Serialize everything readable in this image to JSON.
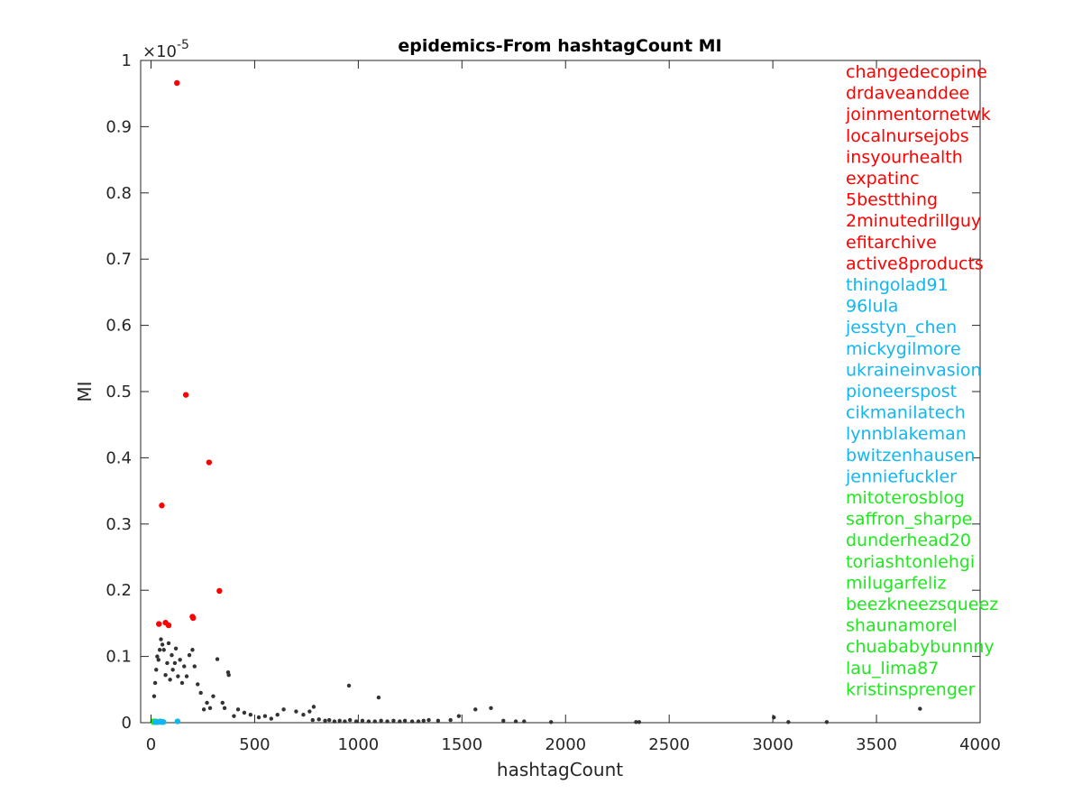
{
  "chart_data": {
    "type": "scatter",
    "title": "epidemics-From hashtagCount MI",
    "xlabel": "hashtagCount",
    "ylabel": "MI",
    "xlim": [
      -50,
      4000
    ],
    "ylim": [
      0,
      1
    ],
    "y_scale_exponent": "-5",
    "y_scale_prefix": "×10",
    "x_ticks": [
      0,
      500,
      1000,
      1500,
      2000,
      2500,
      3000,
      3500,
      4000
    ],
    "x_tick_labels": [
      "0",
      "500",
      "1000",
      "1500",
      "2000",
      "2500",
      "3000",
      "3500",
      "4000"
    ],
    "y_ticks": [
      0,
      0.1,
      0.2,
      0.3,
      0.4,
      0.5,
      0.6,
      0.7,
      0.8,
      0.9,
      1
    ],
    "y_tick_labels": [
      "0",
      "0.1",
      "0.2",
      "0.3",
      "0.4",
      "0.5",
      "0.6",
      "0.7",
      "0.8",
      "0.9",
      "1"
    ],
    "grid": false,
    "legend_placement": "right",
    "colors": {
      "red": "#ff0000",
      "cyan": "#12b6f0",
      "green": "#1fe81f",
      "gray": "#333333",
      "axis": "#262626"
    },
    "series": [
      {
        "color": "#ff0000",
        "labels": [
          "changedecopine",
          "drdaveanddee",
          "joinmentornetwk",
          "localnursejobs",
          "insyourhealth",
          "expatinc",
          "5bestthing",
          "2minutedrillguy",
          "efitarchive",
          "active8products"
        ],
        "points": [
          [
            125,
            0.966
          ],
          [
            168,
            0.495
          ],
          [
            280,
            0.393
          ],
          [
            52,
            0.328
          ],
          [
            330,
            0.199
          ],
          [
            200,
            0.16
          ],
          [
            203,
            0.158
          ],
          [
            70,
            0.151
          ],
          [
            38,
            0.149
          ],
          [
            85,
            0.147
          ]
        ]
      },
      {
        "color": "#12b6f0",
        "labels": [
          "thingolad91",
          "96lula",
          "jesstyn_chen",
          "mickygilmore",
          "ukraineinvasion",
          "pioneerspost",
          "cikmanilatech",
          "lynnblakeman",
          "bwitzenhausen",
          "jenniefuckler"
        ],
        "points": [
          [
            128,
            0.002
          ],
          [
            50,
            0.001
          ],
          [
            20,
            0.001
          ],
          [
            30,
            0.001
          ],
          [
            40,
            0.0015
          ],
          [
            60,
            0.001
          ],
          [
            45,
            0.002
          ],
          [
            25,
            0.001
          ],
          [
            55,
            0.0012
          ],
          [
            35,
            0.001
          ]
        ]
      },
      {
        "color": "#1fe81f",
        "labels": [
          "mitoterosblog",
          "saffron_sharpe",
          "dunderhead20",
          "toriashtonlehgi",
          "milugarfeliz",
          "beezkneezsqueez",
          "shaunamorel",
          "chuababybunnny",
          "lau_lima87",
          "kristinsprenger"
        ],
        "points": [
          [
            10,
            0.002
          ],
          [
            15,
            0.001
          ],
          [
            20,
            0.0015
          ],
          [
            12,
            0.001
          ],
          [
            18,
            0.002
          ],
          [
            22,
            0.001
          ],
          [
            14,
            0.0012
          ],
          [
            16,
            0.001
          ],
          [
            24,
            0.002
          ],
          [
            11,
            0.001
          ]
        ]
      },
      {
        "color": "#333333",
        "points": [
          [
            955,
            0.056
          ],
          [
            1098,
            0.038
          ],
          [
            1565,
            0.02
          ],
          [
            1640,
            0.022
          ],
          [
            3710,
            0.021
          ],
          [
            3005,
            0.008
          ],
          [
            3075,
            0.001
          ],
          [
            3260,
            0.001
          ],
          [
            2340,
            0.001
          ],
          [
            2355,
            0.001
          ],
          [
            1930,
            0.001
          ],
          [
            1800,
            0.002
          ],
          [
            1760,
            0.002
          ],
          [
            1700,
            0.003
          ],
          [
            1485,
            0.01
          ],
          [
            1445,
            0.004
          ],
          [
            1385,
            0.003
          ],
          [
            1340,
            0.004
          ],
          [
            1315,
            0.003
          ],
          [
            1290,
            0.002
          ],
          [
            1260,
            0.002
          ],
          [
            1225,
            0.003
          ],
          [
            1200,
            0.002
          ],
          [
            1170,
            0.003
          ],
          [
            1140,
            0.002
          ],
          [
            1110,
            0.003
          ],
          [
            1080,
            0.002
          ],
          [
            1050,
            0.002
          ],
          [
            1020,
            0.003
          ],
          [
            990,
            0.002
          ],
          [
            960,
            0.004
          ],
          [
            935,
            0.002
          ],
          [
            910,
            0.003
          ],
          [
            885,
            0.002
          ],
          [
            860,
            0.004
          ],
          [
            840,
            0.003
          ],
          [
            810,
            0.005
          ],
          [
            780,
            0.004
          ],
          [
            765,
            0.017
          ],
          [
            785,
            0.024
          ],
          [
            700,
            0.017
          ],
          [
            735,
            0.012
          ],
          [
            640,
            0.02
          ],
          [
            610,
            0.012
          ],
          [
            580,
            0.006
          ],
          [
            550,
            0.01
          ],
          [
            520,
            0.008
          ],
          [
            480,
            0.012
          ],
          [
            450,
            0.015
          ],
          [
            420,
            0.02
          ],
          [
            400,
            0.01
          ],
          [
            375,
            0.072
          ],
          [
            372,
            0.076
          ],
          [
            355,
            0.022
          ],
          [
            345,
            0.03
          ],
          [
            320,
            0.096
          ],
          [
            300,
            0.04
          ],
          [
            285,
            0.022
          ],
          [
            270,
            0.03
          ],
          [
            255,
            0.02
          ],
          [
            240,
            0.045
          ],
          [
            225,
            0.058
          ],
          [
            210,
            0.085
          ],
          [
            200,
            0.11
          ],
          [
            185,
            0.102
          ],
          [
            172,
            0.07
          ],
          [
            160,
            0.085
          ],
          [
            150,
            0.06
          ],
          [
            140,
            0.095
          ],
          [
            130,
            0.07
          ],
          [
            120,
            0.112
          ],
          [
            115,
            0.09
          ],
          [
            105,
            0.08
          ],
          [
            100,
            0.102
          ],
          [
            92,
            0.065
          ],
          [
            85,
            0.12
          ],
          [
            78,
            0.09
          ],
          [
            70,
            0.072
          ],
          [
            62,
            0.11
          ],
          [
            55,
            0.118
          ],
          [
            48,
            0.126
          ],
          [
            42,
            0.11
          ],
          [
            36,
            0.095
          ],
          [
            30,
            0.1
          ],
          [
            25,
            0.08
          ],
          [
            20,
            0.06
          ],
          [
            15,
            0.04
          ]
        ]
      }
    ]
  }
}
